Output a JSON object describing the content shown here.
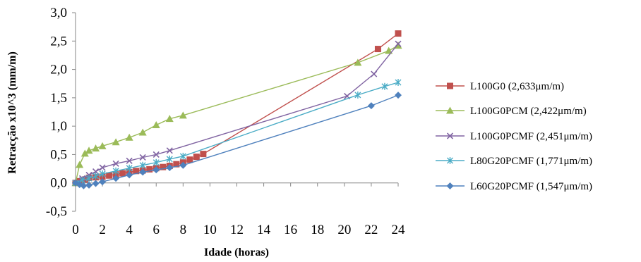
{
  "chart_data": {
    "type": "line",
    "xlabel": "Idade (horas)",
    "ylabel": "Retracção x10^3 (mm/m)",
    "xlim": [
      0,
      24
    ],
    "ylim": [
      -0.5,
      3.0
    ],
    "xticks": [
      0,
      2,
      4,
      6,
      8,
      10,
      12,
      14,
      16,
      18,
      20,
      22,
      24
    ],
    "xtick_labels": [
      "0",
      "2",
      "4",
      "6",
      "8",
      "10",
      "12",
      "14",
      "16",
      "18",
      "20",
      "22",
      "24"
    ],
    "yticks": [
      -0.5,
      0,
      0.5,
      1.0,
      1.5,
      2.0,
      2.5,
      3.0
    ],
    "ytick_labels": [
      "-0,5",
      "0,0",
      "0,5",
      "1,0",
      "1,5",
      "2,0",
      "2,5",
      "3,0"
    ],
    "grid": false,
    "legend_position": "right",
    "series": [
      {
        "name": "L100G0 (2,633μm/m)",
        "color": "#c0504d",
        "marker": "square",
        "x": [
          0,
          0.3,
          0.7,
          1.0,
          1.5,
          2.0,
          2.5,
          3.0,
          3.5,
          4.0,
          4.5,
          5.0,
          5.5,
          6.0,
          6.5,
          7.0,
          7.5,
          8.0,
          8.5,
          9.0,
          9.5,
          22.5,
          24.0
        ],
        "y": [
          0,
          0.03,
          0.06,
          0.09,
          0.1,
          0.11,
          0.13,
          0.15,
          0.17,
          0.19,
          0.21,
          0.22,
          0.24,
          0.26,
          0.28,
          0.3,
          0.33,
          0.36,
          0.41,
          0.46,
          0.51,
          2.36,
          2.633
        ]
      },
      {
        "name": "L100G0PCM (2,422μm/m)",
        "color": "#9bbb59",
        "marker": "triangle",
        "x": [
          0,
          0.3,
          0.7,
          1.0,
          1.5,
          2.0,
          3.0,
          4.0,
          5.0,
          6.0,
          7.0,
          8.0,
          21.0,
          23.3,
          24.0
        ],
        "y": [
          0,
          0.32,
          0.52,
          0.57,
          0.61,
          0.65,
          0.72,
          0.8,
          0.89,
          1.02,
          1.13,
          1.19,
          2.12,
          2.33,
          2.422
        ]
      },
      {
        "name": "L100G0PCMF (2,451μm/m)",
        "color": "#8064a2",
        "marker": "x",
        "x": [
          0,
          0.5,
          1.0,
          1.5,
          2.0,
          3.0,
          4.0,
          5.0,
          6.0,
          7.0,
          20.2,
          22.2,
          24.0
        ],
        "y": [
          0,
          0.08,
          0.14,
          0.2,
          0.27,
          0.34,
          0.39,
          0.45,
          0.5,
          0.57,
          1.53,
          1.92,
          2.451
        ]
      },
      {
        "name": "L80G20PCMF (1,771μm/m)",
        "color": "#4bacc6",
        "marker": "asterisk",
        "x": [
          0,
          0.5,
          1.0,
          1.5,
          2.0,
          3.0,
          4.0,
          5.0,
          6.0,
          7.0,
          8.0,
          21.0,
          23.0,
          24.0
        ],
        "y": [
          0,
          0.05,
          0.08,
          0.12,
          0.16,
          0.21,
          0.26,
          0.31,
          0.36,
          0.42,
          0.47,
          1.55,
          1.7,
          1.771
        ]
      },
      {
        "name": "L60G20PCMF (1,547μm/m)",
        "color": "#4f81bd",
        "marker": "diamond",
        "x": [
          0,
          0.3,
          0.6,
          1.0,
          1.5,
          2.0,
          3.0,
          4.0,
          5.0,
          6.0,
          7.0,
          8.0,
          22.0,
          24.0
        ],
        "y": [
          0,
          -0.03,
          -0.05,
          -0.04,
          -0.01,
          0.02,
          0.08,
          0.14,
          0.19,
          0.23,
          0.27,
          0.31,
          1.36,
          1.547
        ]
      }
    ]
  }
}
